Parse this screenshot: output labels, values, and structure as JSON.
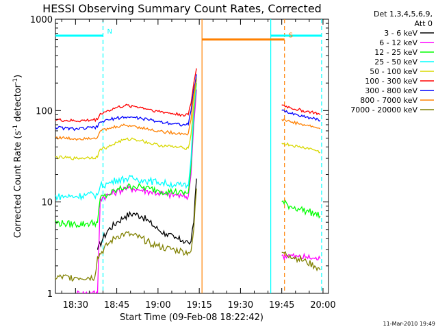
{
  "chart_data": {
    "type": "line",
    "title": "HESSI Observing Summary Count Rates, Corrected",
    "xlabel": "Start Time (09-Feb-08 18:22:42)",
    "ylabel": "Corrected Count Rate (s⁻¹ detector⁻¹)",
    "ylabel_main": "Corrected Count Rate (s",
    "ylabel_sup1": "-1",
    "ylabel_mid": " detector",
    "ylabel_sup2": "-1",
    "ylabel_end": ")",
    "y_scale": "log",
    "ylim": [
      1,
      1000
    ],
    "xlim": [
      "18:22:42",
      "20:02:00"
    ],
    "x_ticks": [
      "18:30",
      "18:45",
      "19:00",
      "19:15",
      "19:30",
      "19:45",
      "20:00"
    ],
    "y_ticks": [
      "1",
      "10",
      "100",
      "1000"
    ],
    "legend": {
      "position": "top-right, outside plot",
      "header_line1": "Det 1,3,4,5,6,9,",
      "header_line2": "Att 0"
    },
    "footer_date": "11-Mar-2010 19:49",
    "flags": [
      {
        "name": "N",
        "label": "N",
        "color": "#00ffff",
        "segments": [
          [
            "18:22:42",
            "18:40:00"
          ],
          [
            "19:41:00",
            "19:59:30"
          ]
        ],
        "y": 660
      },
      {
        "name": "S",
        "label": "S",
        "color": "#ff8000",
        "segments": [
          [
            "19:16:00",
            "19:46:00"
          ]
        ],
        "y": 600
      }
    ],
    "markers": [
      {
        "time": "18:40:00",
        "color": "#00ffff",
        "style": "dashed"
      },
      {
        "time": "19:16:00",
        "color": "#ff8000",
        "style": "solid"
      },
      {
        "time": "19:41:00",
        "color": "#00ffff",
        "style": "solid"
      },
      {
        "time": "19:46:00",
        "color": "#ff8000",
        "style": "dashed"
      },
      {
        "time": "19:59:30",
        "color": "#00ffff",
        "style": "dashed"
      }
    ],
    "series": [
      {
        "name": "3 - 6 keV",
        "color": "#000000",
        "x": [
          "18:38",
          "18:40",
          "18:42",
          "18:45",
          "18:48",
          "18:51",
          "18:54",
          "18:57",
          "19:00",
          "19:03",
          "19:06",
          "19:09",
          "19:11",
          "19:12",
          "19:13",
          "19:14"
        ],
        "y": [
          3,
          4,
          5,
          6,
          7,
          7.5,
          7,
          6,
          5,
          4.5,
          4,
          3.8,
          3.6,
          3.7,
          6,
          18
        ]
      },
      {
        "name": "6 - 12 keV",
        "color": "#ff00ff",
        "x": [
          "18:30",
          "18:38",
          "18:39",
          "18:42",
          "18:45",
          "18:48",
          "18:51",
          "18:54",
          "18:57",
          "19:00",
          "19:03",
          "19:06",
          "19:09",
          "19:11",
          "19:12",
          "19:13",
          "19:14",
          "19:45",
          "19:48",
          "19:51",
          "19:54",
          "19:57",
          "19:59"
        ],
        "y": [
          1,
          1,
          11,
          12,
          13,
          14,
          14,
          13.5,
          13,
          12.5,
          12,
          12,
          11.5,
          11.5,
          20,
          70,
          170,
          2.6,
          2.6,
          2.5,
          2.5,
          2.4,
          2.4
        ]
      },
      {
        "name": "12 - 25 keV",
        "color": "#00ff00",
        "x": [
          "18:22",
          "18:26",
          "18:30",
          "18:34",
          "18:38",
          "18:39",
          "18:42",
          "18:45",
          "18:48",
          "18:51",
          "18:54",
          "18:57",
          "19:00",
          "19:03",
          "19:06",
          "19:09",
          "19:11",
          "19:12",
          "19:13",
          "19:14",
          "19:45",
          "19:48",
          "19:51",
          "19:54",
          "19:57",
          "19:59"
        ],
        "y": [
          6,
          5.8,
          5.7,
          5.8,
          6,
          11,
          12,
          13.5,
          14.5,
          15,
          14.5,
          14,
          13.5,
          13,
          13,
          12.5,
          12.5,
          25,
          90,
          200,
          10,
          9,
          8.5,
          8,
          7.5,
          7
        ]
      },
      {
        "name": "25 - 50 keV",
        "color": "#00ffff",
        "x": [
          "18:22",
          "18:26",
          "18:30",
          "18:34",
          "18:38",
          "18:39",
          "18:42",
          "18:45",
          "18:48",
          "18:51",
          "18:54",
          "18:57",
          "19:00",
          "19:03",
          "19:06",
          "19:09",
          "19:11",
          "19:12",
          "19:13",
          "19:14"
        ],
        "y": [
          11.5,
          11.5,
          11.5,
          12,
          12,
          15,
          16,
          17.5,
          18,
          18,
          17.5,
          17,
          16.5,
          16,
          15.5,
          15,
          15,
          30,
          100,
          220
        ]
      },
      {
        "name": "50 - 100 keV",
        "color": "#d8d800",
        "x": [
          "18:22",
          "18:26",
          "18:30",
          "18:34",
          "18:38",
          "18:39",
          "18:42",
          "18:45",
          "18:48",
          "18:51",
          "18:54",
          "18:57",
          "19:00",
          "19:03",
          "19:06",
          "19:09",
          "19:11",
          "19:12",
          "19:13",
          "19:14",
          "19:45",
          "19:48",
          "19:51",
          "19:54",
          "19:57",
          "19:59"
        ],
        "y": [
          31,
          30.5,
          30,
          30.5,
          31,
          38,
          40,
          45,
          48,
          49,
          47,
          44,
          42,
          41,
          40,
          39,
          39,
          55,
          120,
          230,
          44,
          42,
          40,
          39,
          37,
          35
        ]
      },
      {
        "name": "100 - 300 keV",
        "color": "#ff0000",
        "x": [
          "18:22",
          "18:26",
          "18:30",
          "18:34",
          "18:38",
          "18:39",
          "18:42",
          "18:45",
          "18:48",
          "18:51",
          "18:54",
          "18:57",
          "19:00",
          "19:03",
          "19:06",
          "19:09",
          "19:11",
          "19:12",
          "19:13",
          "19:14",
          "19:45",
          "19:48",
          "19:51",
          "19:54",
          "19:57",
          "19:59"
        ],
        "y": [
          80,
          78,
          77,
          78,
          80,
          93,
          100,
          108,
          113,
          112,
          108,
          103,
          98,
          95,
          92,
          90,
          90,
          120,
          200,
          290,
          115,
          108,
          102,
          98,
          95,
          90
        ]
      },
      {
        "name": "300 - 800 keV",
        "color": "#0000ff",
        "x": [
          "18:22",
          "18:26",
          "18:30",
          "18:34",
          "18:38",
          "18:39",
          "18:42",
          "18:45",
          "18:48",
          "18:51",
          "18:54",
          "18:57",
          "19:00",
          "19:03",
          "19:06",
          "19:09",
          "19:11",
          "19:12",
          "19:13",
          "19:14",
          "19:45",
          "19:48",
          "19:51",
          "19:54",
          "19:57",
          "19:59"
        ],
        "y": [
          66,
          64,
          63,
          64,
          66,
          75,
          79,
          83,
          85,
          84,
          82,
          79,
          76,
          74,
          72,
          70,
          70,
          100,
          170,
          250,
          100,
          94,
          89,
          85,
          82,
          78
        ]
      },
      {
        "name": "800 - 7000 keV",
        "color": "#ff8000",
        "x": [
          "18:22",
          "18:26",
          "18:30",
          "18:34",
          "18:38",
          "18:39",
          "18:42",
          "18:45",
          "18:48",
          "18:51",
          "18:54",
          "18:57",
          "19:00",
          "19:03",
          "19:06",
          "19:09",
          "19:11",
          "19:12",
          "19:13",
          "19:14",
          "19:45",
          "19:48",
          "19:51",
          "19:54",
          "19:57",
          "19:59"
        ],
        "y": [
          51,
          50,
          49,
          50,
          51,
          60,
          63,
          67,
          69,
          68,
          65,
          62,
          60,
          58,
          57,
          56,
          56,
          80,
          150,
          220,
          80,
          76,
          72,
          69,
          66,
          63
        ]
      },
      {
        "name": "7000 - 20000 keV",
        "color": "#808000",
        "x": [
          "18:22",
          "18:30",
          "18:37",
          "18:38",
          "18:42",
          "18:45",
          "18:48",
          "18:51",
          "18:54",
          "18:57",
          "19:00",
          "19:03",
          "19:06",
          "19:09",
          "19:11",
          "19:12",
          "19:13",
          "19:14",
          "19:45",
          "19:48",
          "19:51",
          "19:54",
          "19:57",
          "19:59"
        ],
        "y": [
          1.5,
          1.5,
          1.5,
          2.5,
          3.5,
          4.2,
          4.5,
          4.3,
          4,
          3.6,
          3.3,
          3.1,
          3,
          2.9,
          2.8,
          2.9,
          5,
          14,
          2.8,
          2.6,
          2.4,
          2.2,
          2,
          1.8
        ]
      }
    ]
  }
}
